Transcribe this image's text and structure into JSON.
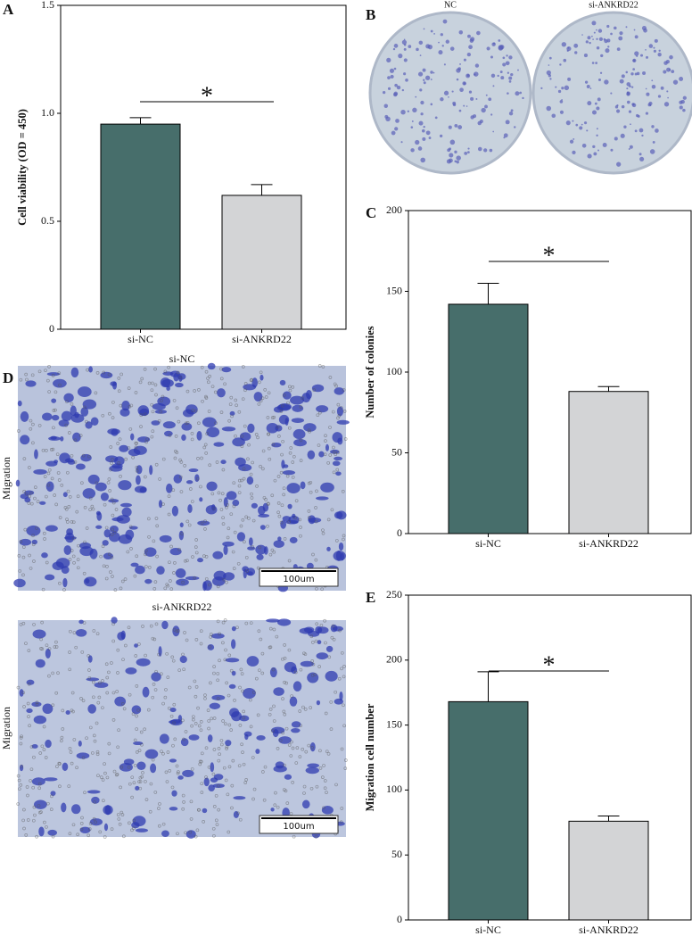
{
  "panels": {
    "a": "A",
    "b": "B",
    "c": "C",
    "d": "D",
    "e": "E"
  },
  "colony_images": {
    "left": "NC",
    "right": "si-ANKRD22"
  },
  "migration_images": [
    {
      "title": "si-NC",
      "side_label": "Migration",
      "scale_bar": "100um"
    },
    {
      "title": "si-ANKRD22",
      "side_label": "Migration",
      "scale_bar": "100um"
    }
  ],
  "chart_data": [
    {
      "type": "bar",
      "y_label": "Cell viability (OD = 450)",
      "categories": [
        "si-NC",
        "si-ANKRD22"
      ],
      "values": [
        0.95,
        0.62
      ],
      "errors": [
        0.03,
        0.05
      ],
      "colors": [
        "#476e6b",
        "#d3d4d6"
      ],
      "ylim": [
        0,
        1.5
      ],
      "yticks": [
        0,
        0.5,
        {
          "value": 1,
          "label": "1.0"
        },
        1.5
      ],
      "annotation": "*"
    },
    {
      "type": "bar",
      "y_label": "Number of colonies",
      "categories": [
        "si-NC",
        "si-ANKRD22"
      ],
      "values": [
        142,
        88
      ],
      "errors": [
        13,
        3
      ],
      "colors": [
        "#476e6b",
        "#d3d4d6"
      ],
      "ylim": [
        0,
        200
      ],
      "yticks": [
        0,
        50,
        100,
        150,
        200
      ],
      "annotation": "*"
    },
    {
      "type": "bar",
      "y_label": "Migration cell number",
      "categories": [
        "si-NC",
        "si-ANKRD22"
      ],
      "values": [
        168,
        76
      ],
      "errors": [
        23,
        4
      ],
      "colors": [
        "#476e6b",
        "#d3d4d6"
      ],
      "ylim": [
        0,
        250
      ],
      "yticks": [
        0,
        50,
        100,
        150,
        200,
        250
      ],
      "annotation": "*"
    }
  ]
}
